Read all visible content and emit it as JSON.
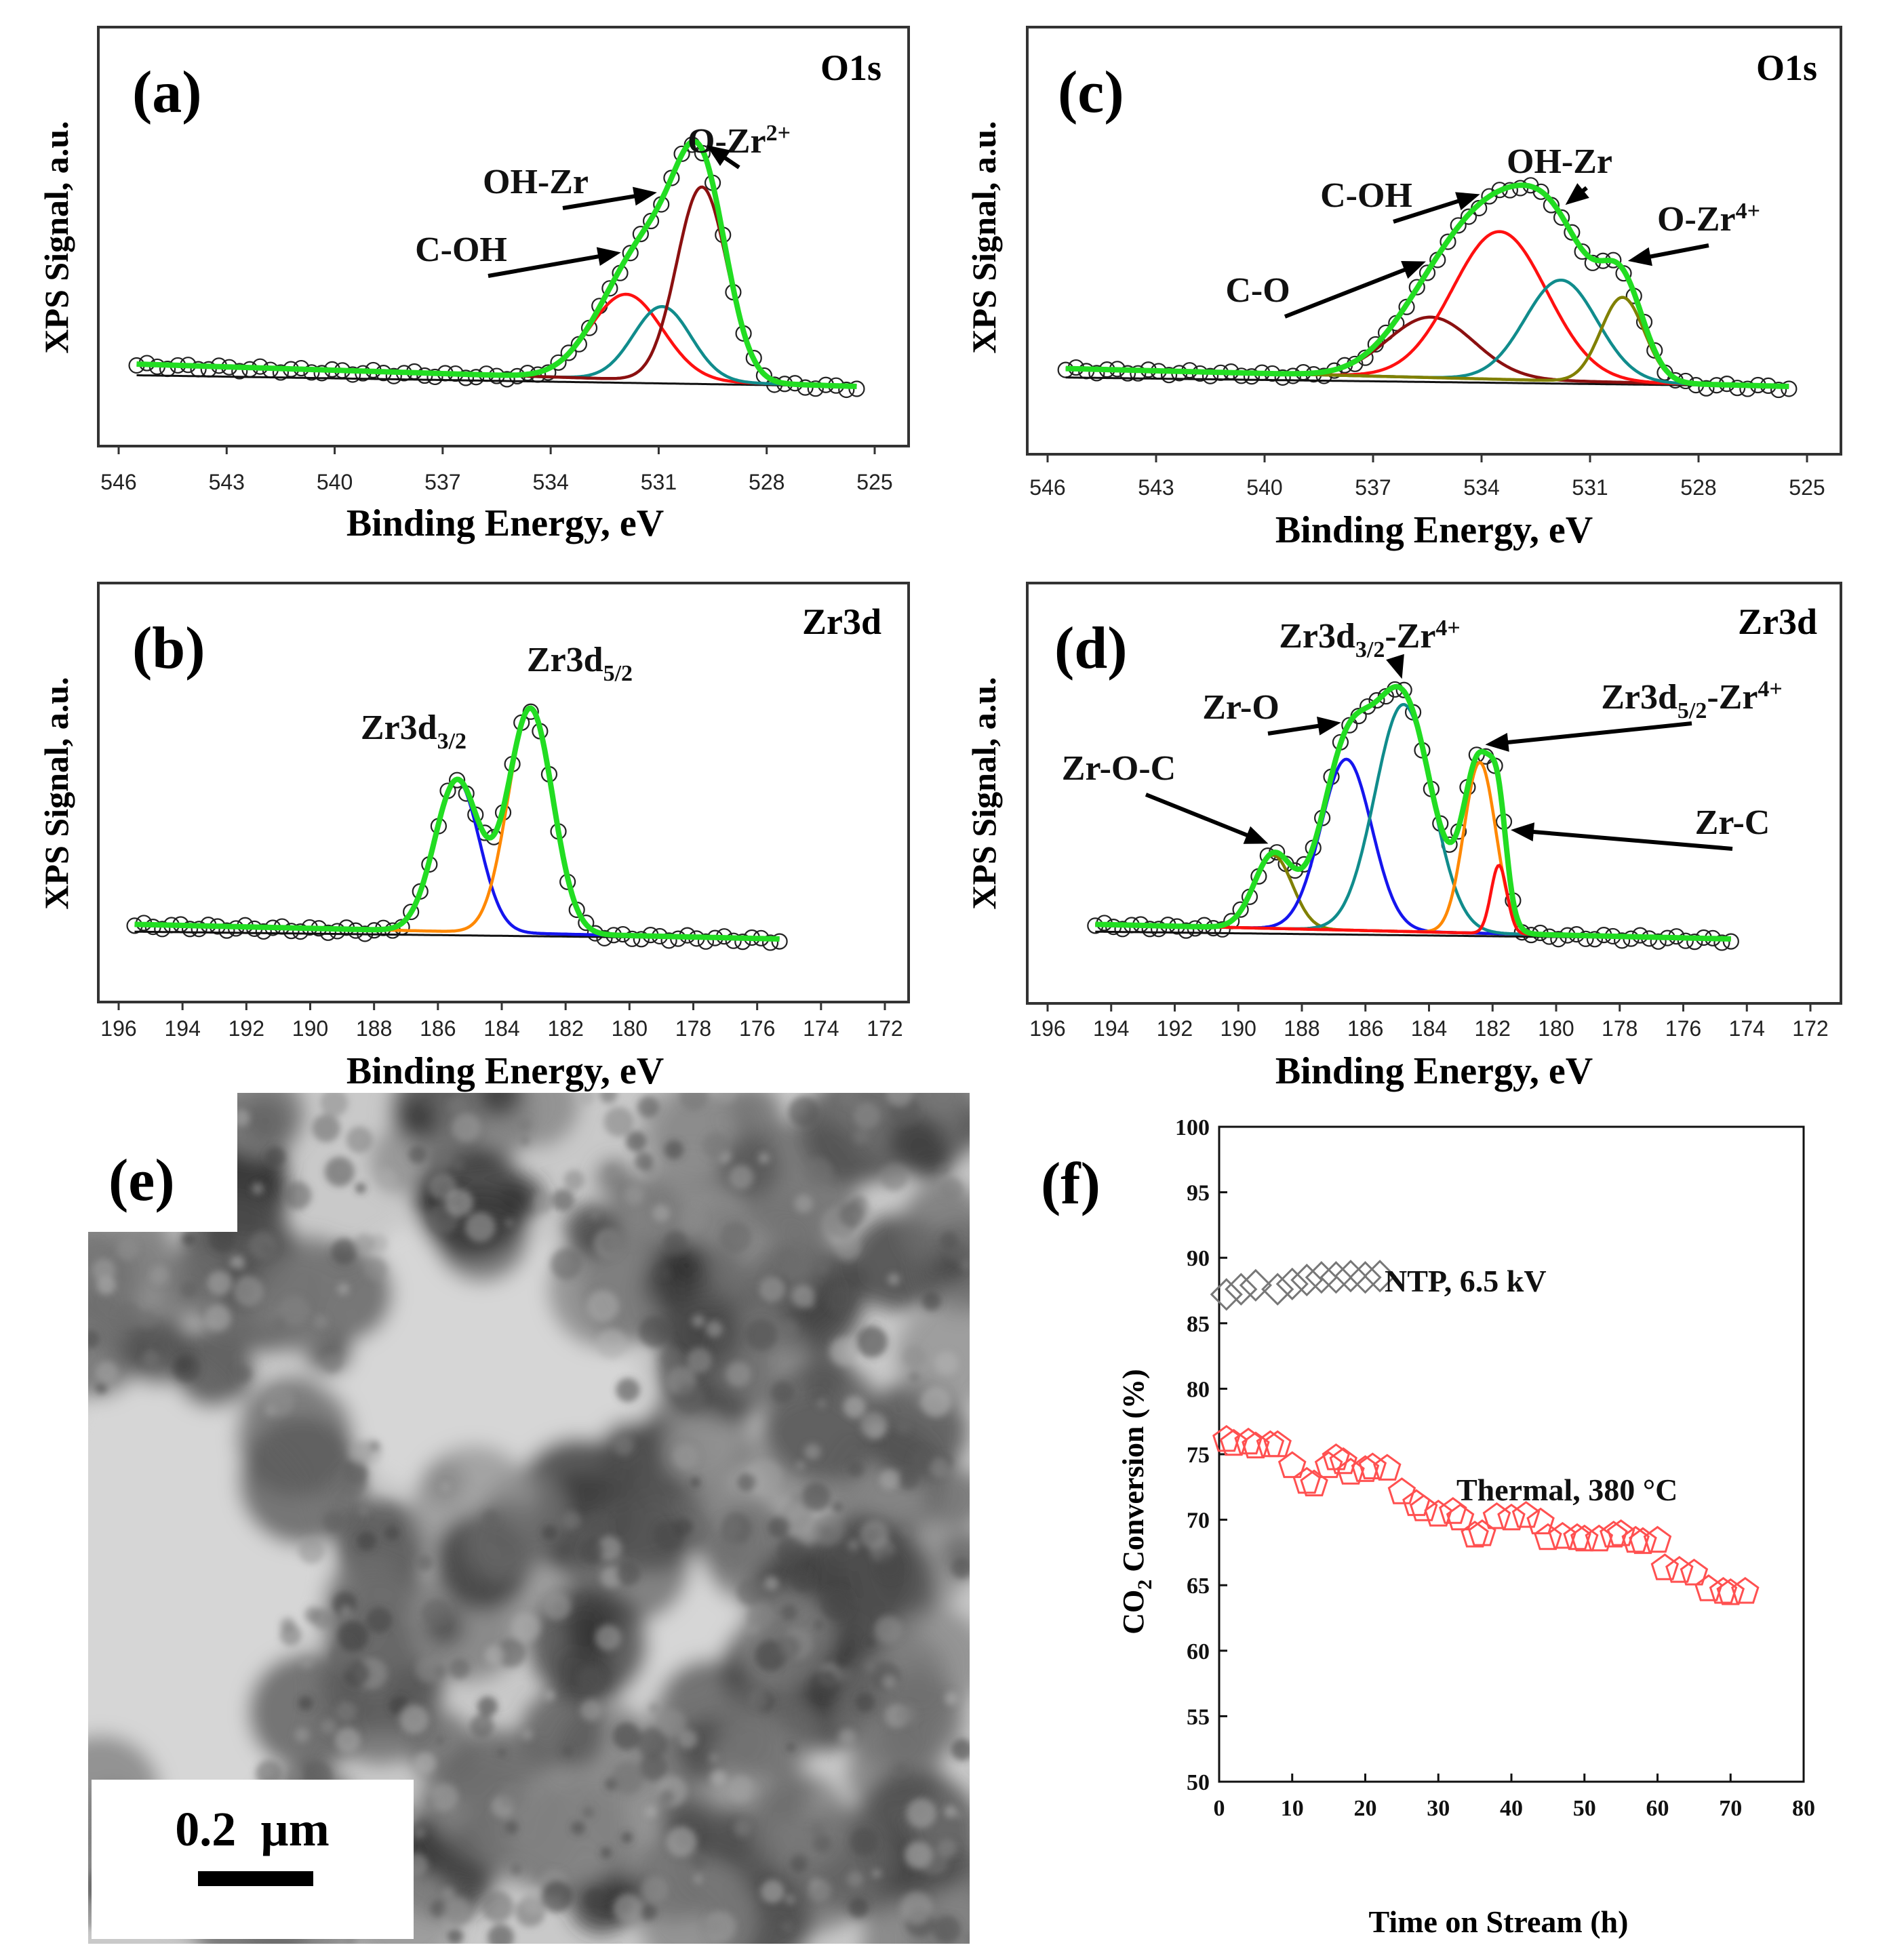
{
  "figure": "XPS spectra, TEM image and CO2 conversion stability",
  "chart_data": [
    {
      "id": "a",
      "type": "line",
      "panel_label": "(a)",
      "title": "O1s",
      "xlabel": "Binding Energy, eV",
      "ylabel": "XPS Signal, a.u.",
      "xlim": [
        546,
        525
      ],
      "x_ticks": [
        "546",
        "543",
        "540",
        "537",
        "534",
        "531",
        "528",
        "525"
      ],
      "ylim": [
        0,
        1.2
      ],
      "background": {
        "x": [
          545.5,
          525.5
        ],
        "y": [
          0.1,
          0.0
        ]
      },
      "components": [
        {
          "name": "C-OH",
          "center": 531.9,
          "height": 0.38,
          "width": 1.0,
          "color": "#ff1010"
        },
        {
          "name": "OH-Zr",
          "center": 530.9,
          "height": 0.33,
          "width": 0.8,
          "color": "#108c8c"
        },
        {
          "name": "O-Zr2+",
          "center": 529.8,
          "height": 0.87,
          "width": 0.7,
          "color": "#8b1010"
        }
      ],
      "annotations": [
        {
          "text": "C-OH",
          "target": 531.9
        },
        {
          "text": "OH-Zr",
          "target": 530.9
        },
        {
          "text": "O-Zr",
          "sup": "2+",
          "target": 529.8
        }
      ]
    },
    {
      "id": "b",
      "type": "line",
      "panel_label": "(b)",
      "title": "Zr3d",
      "xlabel": "Binding Energy, eV",
      "ylabel": "XPS Signal, a.u.",
      "xlim": [
        196,
        172
      ],
      "x_ticks": [
        "196",
        "194",
        "192",
        "190",
        "188",
        "186",
        "184",
        "182",
        "180",
        "178",
        "176",
        "174",
        "172"
      ],
      "ylim": [
        0,
        1.2
      ],
      "background": {
        "x": [
          195.5,
          175.3
        ],
        "y": [
          0.06,
          0.0
        ]
      },
      "components": [
        {
          "name": "Zr3d3/2",
          "center": 185.4,
          "height": 0.62,
          "width": 0.7,
          "color": "#1515ee"
        },
        {
          "name": "Zr3d5/2",
          "center": 183.1,
          "height": 0.92,
          "width": 0.7,
          "color": "#ff8800"
        }
      ],
      "annotations": [
        {
          "text": "Zr3d",
          "sub": "3/2",
          "target": 185.4
        },
        {
          "text": "Zr3d",
          "sub": "5/2",
          "target": 183.1
        }
      ]
    },
    {
      "id": "c",
      "type": "line",
      "panel_label": "(c)",
      "title": "O1s",
      "xlabel": "Binding Energy, eV",
      "ylabel": "XPS Signal, a.u.",
      "xlim": [
        546,
        525
      ],
      "x_ticks": [
        "546",
        "543",
        "540",
        "537",
        "534",
        "531",
        "528",
        "525"
      ],
      "ylim": [
        0,
        1.2
      ],
      "background": {
        "x": [
          545.5,
          525.5
        ],
        "y": [
          0.08,
          0.0
        ]
      },
      "components": [
        {
          "name": "C-O",
          "center": 535.4,
          "height": 0.27,
          "width": 1.2,
          "color": "#8b1010"
        },
        {
          "name": "C-OH",
          "center": 533.5,
          "height": 0.66,
          "width": 1.3,
          "color": "#ff1010"
        },
        {
          "name": "OH-Zr",
          "center": 531.8,
          "height": 0.45,
          "width": 1.0,
          "color": "#108c8c"
        },
        {
          "name": "O-Zr4+",
          "center": 530.1,
          "height": 0.38,
          "width": 0.6,
          "color": "#808000"
        }
      ],
      "annotations": [
        {
          "text": "C-O",
          "target": 535.4
        },
        {
          "text": "C-OH",
          "target": 533.9
        },
        {
          "text": "OH-Zr",
          "target": 531.8
        },
        {
          "text": "O-Zr",
          "sup": "4+",
          "target": 530.1
        }
      ]
    },
    {
      "id": "d",
      "type": "line",
      "panel_label": "(d)",
      "title": "Zr3d",
      "xlabel": "Binding Energy, eV",
      "ylabel": "XPS Signal, a.u.",
      "xlim": [
        196,
        172
      ],
      "x_ticks": [
        "196",
        "194",
        "192",
        "190",
        "188",
        "186",
        "184",
        "182",
        "180",
        "178",
        "176",
        "174",
        "172"
      ],
      "ylim": [
        0,
        1.2
      ],
      "background": {
        "x": [
          194.5,
          174.5
        ],
        "y": [
          0.06,
          0.0
        ]
      },
      "components": [
        {
          "name": "Zr-O-C",
          "center": 188.9,
          "height": 0.3,
          "width": 0.6,
          "color": "#808000"
        },
        {
          "name": "Zr-O",
          "center": 186.6,
          "height": 0.7,
          "width": 0.8,
          "color": "#1515ee"
        },
        {
          "name": "Zr3d3/2-Zr4+",
          "center": 184.8,
          "height": 0.93,
          "width": 0.9,
          "color": "#108c8c"
        },
        {
          "name": "Zr3d5/2-Zr4+",
          "center": 182.4,
          "height": 0.7,
          "width": 0.5,
          "color": "#ff8800"
        },
        {
          "name": "Zr-C",
          "center": 181.8,
          "height": 0.28,
          "width": 0.25,
          "color": "#ff1010"
        }
      ],
      "annotations": [
        {
          "text": "Zr-O-C",
          "target": 188.9
        },
        {
          "text": "Zr-O",
          "target": 186.6
        },
        {
          "text": "Zr3d",
          "sub": "3/2",
          "tail": "-Zr",
          "sup": "4+",
          "target": 184.8
        },
        {
          "text": "Zr3d",
          "sub": "5/2",
          "tail": "-Zr",
          "sup": "4+",
          "target": 182.4
        },
        {
          "text": "Zr-C",
          "target": 181.6
        }
      ]
    },
    {
      "id": "f",
      "type": "scatter",
      "panel_label": "(f)",
      "xlabel": "Time on Stream (h)",
      "ylabel": "CO2 Conversion (%)",
      "xlim": [
        0,
        80
      ],
      "ylim": [
        50,
        100
      ],
      "x_ticks": [
        "0",
        "10",
        "20",
        "30",
        "40",
        "50",
        "60",
        "70",
        "80"
      ],
      "y_ticks": [
        "50",
        "55",
        "60",
        "65",
        "70",
        "75",
        "80",
        "85",
        "90",
        "95",
        "100"
      ],
      "series": [
        {
          "name": "NTP, 6.5 kV",
          "marker": "diamond",
          "color": "#777777",
          "x": [
            1,
            3,
            5,
            8,
            10,
            12,
            14,
            16,
            18,
            20,
            22
          ],
          "y": [
            87.2,
            87.6,
            87.9,
            87.6,
            88.0,
            88.3,
            88.5,
            88.5,
            88.6,
            88.5,
            88.6
          ]
        },
        {
          "name": "Thermal, 380 °C",
          "marker": "pentagon",
          "color": "#ff5050",
          "x": [
            1,
            2,
            4,
            5,
            7,
            8,
            10,
            12,
            13,
            15,
            16,
            17,
            18,
            20,
            21,
            23,
            25,
            27,
            28,
            30,
            32,
            33,
            35,
            36,
            38,
            40,
            42,
            44,
            45,
            47,
            49,
            50,
            52,
            54,
            55,
            57,
            58,
            60,
            61,
            63,
            65,
            67,
            69,
            70,
            72
          ],
          "y": [
            76.1,
            75.8,
            75.9,
            75.6,
            75.7,
            75.7,
            74.1,
            72.9,
            72.7,
            74.1,
            74.7,
            74.4,
            73.6,
            73.8,
            74.0,
            73.9,
            72.1,
            71.2,
            70.8,
            70.4,
            70.6,
            70.1,
            68.8,
            68.9,
            70.2,
            70.1,
            70.3,
            69.8,
            68.6,
            68.7,
            68.6,
            68.5,
            68.5,
            68.8,
            68.9,
            68.4,
            68.3,
            68.4,
            66.3,
            66.1,
            65.9,
            64.7,
            64.5,
            64.4,
            64.5
          ]
        }
      ],
      "annotations": [
        {
          "text": "NTP, 6.5 kV",
          "series": 0
        },
        {
          "text": "Thermal, 380 °C",
          "series": 1
        }
      ]
    }
  ],
  "tem_panel": {
    "panel_label": "(e)",
    "scale_bar_label": "0.2  µm"
  }
}
